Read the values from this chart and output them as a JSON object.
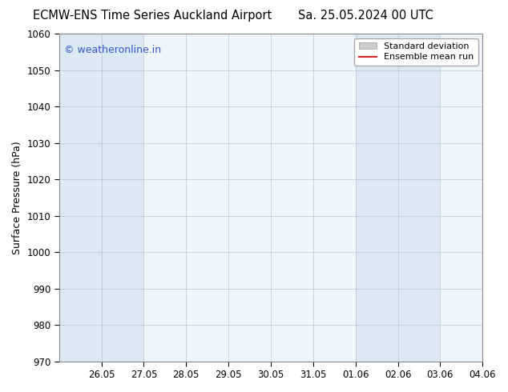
{
  "title_left": "ECMW-ENS Time Series Auckland Airport",
  "title_right": "Sa. 25.05.2024 00 UTC",
  "ylabel": "Surface Pressure (hPa)",
  "ylim": [
    970,
    1060
  ],
  "yticks": [
    970,
    980,
    990,
    1000,
    1010,
    1020,
    1030,
    1040,
    1050,
    1060
  ],
  "watermark": "© weatheronline.in",
  "watermark_color": "#3355cc",
  "background_color": "#ffffff",
  "plot_bg_color": "#dce9f5",
  "shaded_columns": [
    {
      "start": 0,
      "end": 2
    },
    {
      "start": 7,
      "end": 9
    }
  ],
  "unshaded_bg": "#eef5fb",
  "legend_std_dev_color": "#bbbbbb",
  "legend_mean_color": "#dd2222",
  "x_total_days": 10,
  "xtick_positions": [
    1,
    2,
    3,
    4,
    5,
    6,
    7,
    8,
    9,
    10
  ],
  "xtick_labels": [
    "26.05",
    "27.05",
    "28.05",
    "29.05",
    "30.05",
    "31.05",
    "01.06",
    "02.06",
    "03.06",
    "04.06"
  ],
  "title_fontsize": 10.5,
  "tick_fontsize": 8.5,
  "legend_fontsize": 8,
  "ylabel_fontsize": 9,
  "watermark_fontsize": 9
}
